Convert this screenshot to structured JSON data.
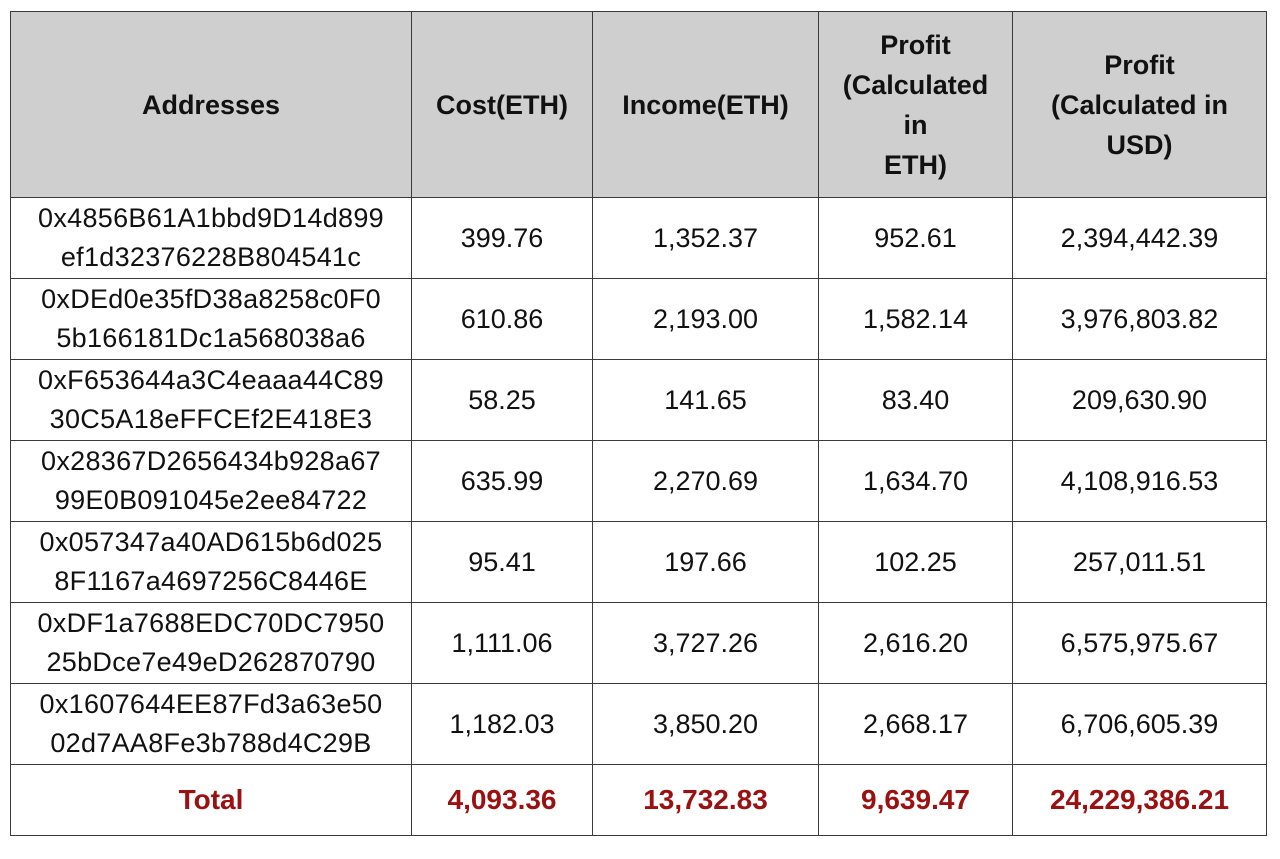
{
  "table": {
    "headers": {
      "addresses": "Addresses",
      "cost": "Cost(ETH)",
      "income": "Income(ETH)",
      "profit_eth": [
        "Profit",
        "(Calculated",
        "in",
        "ETH)"
      ],
      "profit_usd": [
        "Profit",
        "(Calculated in",
        "USD)"
      ]
    },
    "rows": [
      {
        "address": [
          "0x4856B61A1bbd9D14d899",
          "ef1d32376228B804541c"
        ],
        "cost": "399.76",
        "income": "1,352.37",
        "profit_eth": "952.61",
        "profit_usd": "2,394,442.39"
      },
      {
        "address": [
          "0xDEd0e35fD38a8258c0F0",
          "5b166181Dc1a568038a6"
        ],
        "cost": "610.86",
        "income": "2,193.00",
        "profit_eth": "1,582.14",
        "profit_usd": "3,976,803.82"
      },
      {
        "address": [
          "0xF653644a3C4eaaa44C89",
          "30C5A18eFFCEf2E418E3"
        ],
        "cost": "58.25",
        "income": "141.65",
        "profit_eth": "83.40",
        "profit_usd": "209,630.90"
      },
      {
        "address": [
          "0x28367D2656434b928a67",
          "99E0B091045e2ee84722"
        ],
        "cost": "635.99",
        "income": "2,270.69",
        "profit_eth": "1,634.70",
        "profit_usd": "4,108,916.53"
      },
      {
        "address": [
          "0x057347a40AD615b6d025",
          "8F1167a4697256C8446E"
        ],
        "cost": "95.41",
        "income": "197.66",
        "profit_eth": "102.25",
        "profit_usd": "257,011.51"
      },
      {
        "address": [
          "0xDF1a7688EDC70DC7950",
          "25bDce7e49eD262870790"
        ],
        "cost": "1,111.06",
        "income": "3,727.26",
        "profit_eth": "2,616.20",
        "profit_usd": "6,575,975.67"
      },
      {
        "address": [
          "0x1607644EE87Fd3a63e50",
          "02d7AA8Fe3b788d4C29B"
        ],
        "cost": "1,182.03",
        "income": "3,850.20",
        "profit_eth": "2,668.17",
        "profit_usd": "6,706,605.39"
      }
    ],
    "total": {
      "label": "Total",
      "cost": "4,093.36",
      "income": "13,732.83",
      "profit_eth": "9,639.47",
      "profit_usd": "24,229,386.21"
    }
  },
  "colors": {
    "header_bg": "#cfcfcf",
    "total_text": "#9b1010",
    "border": "#3a3a3a"
  }
}
